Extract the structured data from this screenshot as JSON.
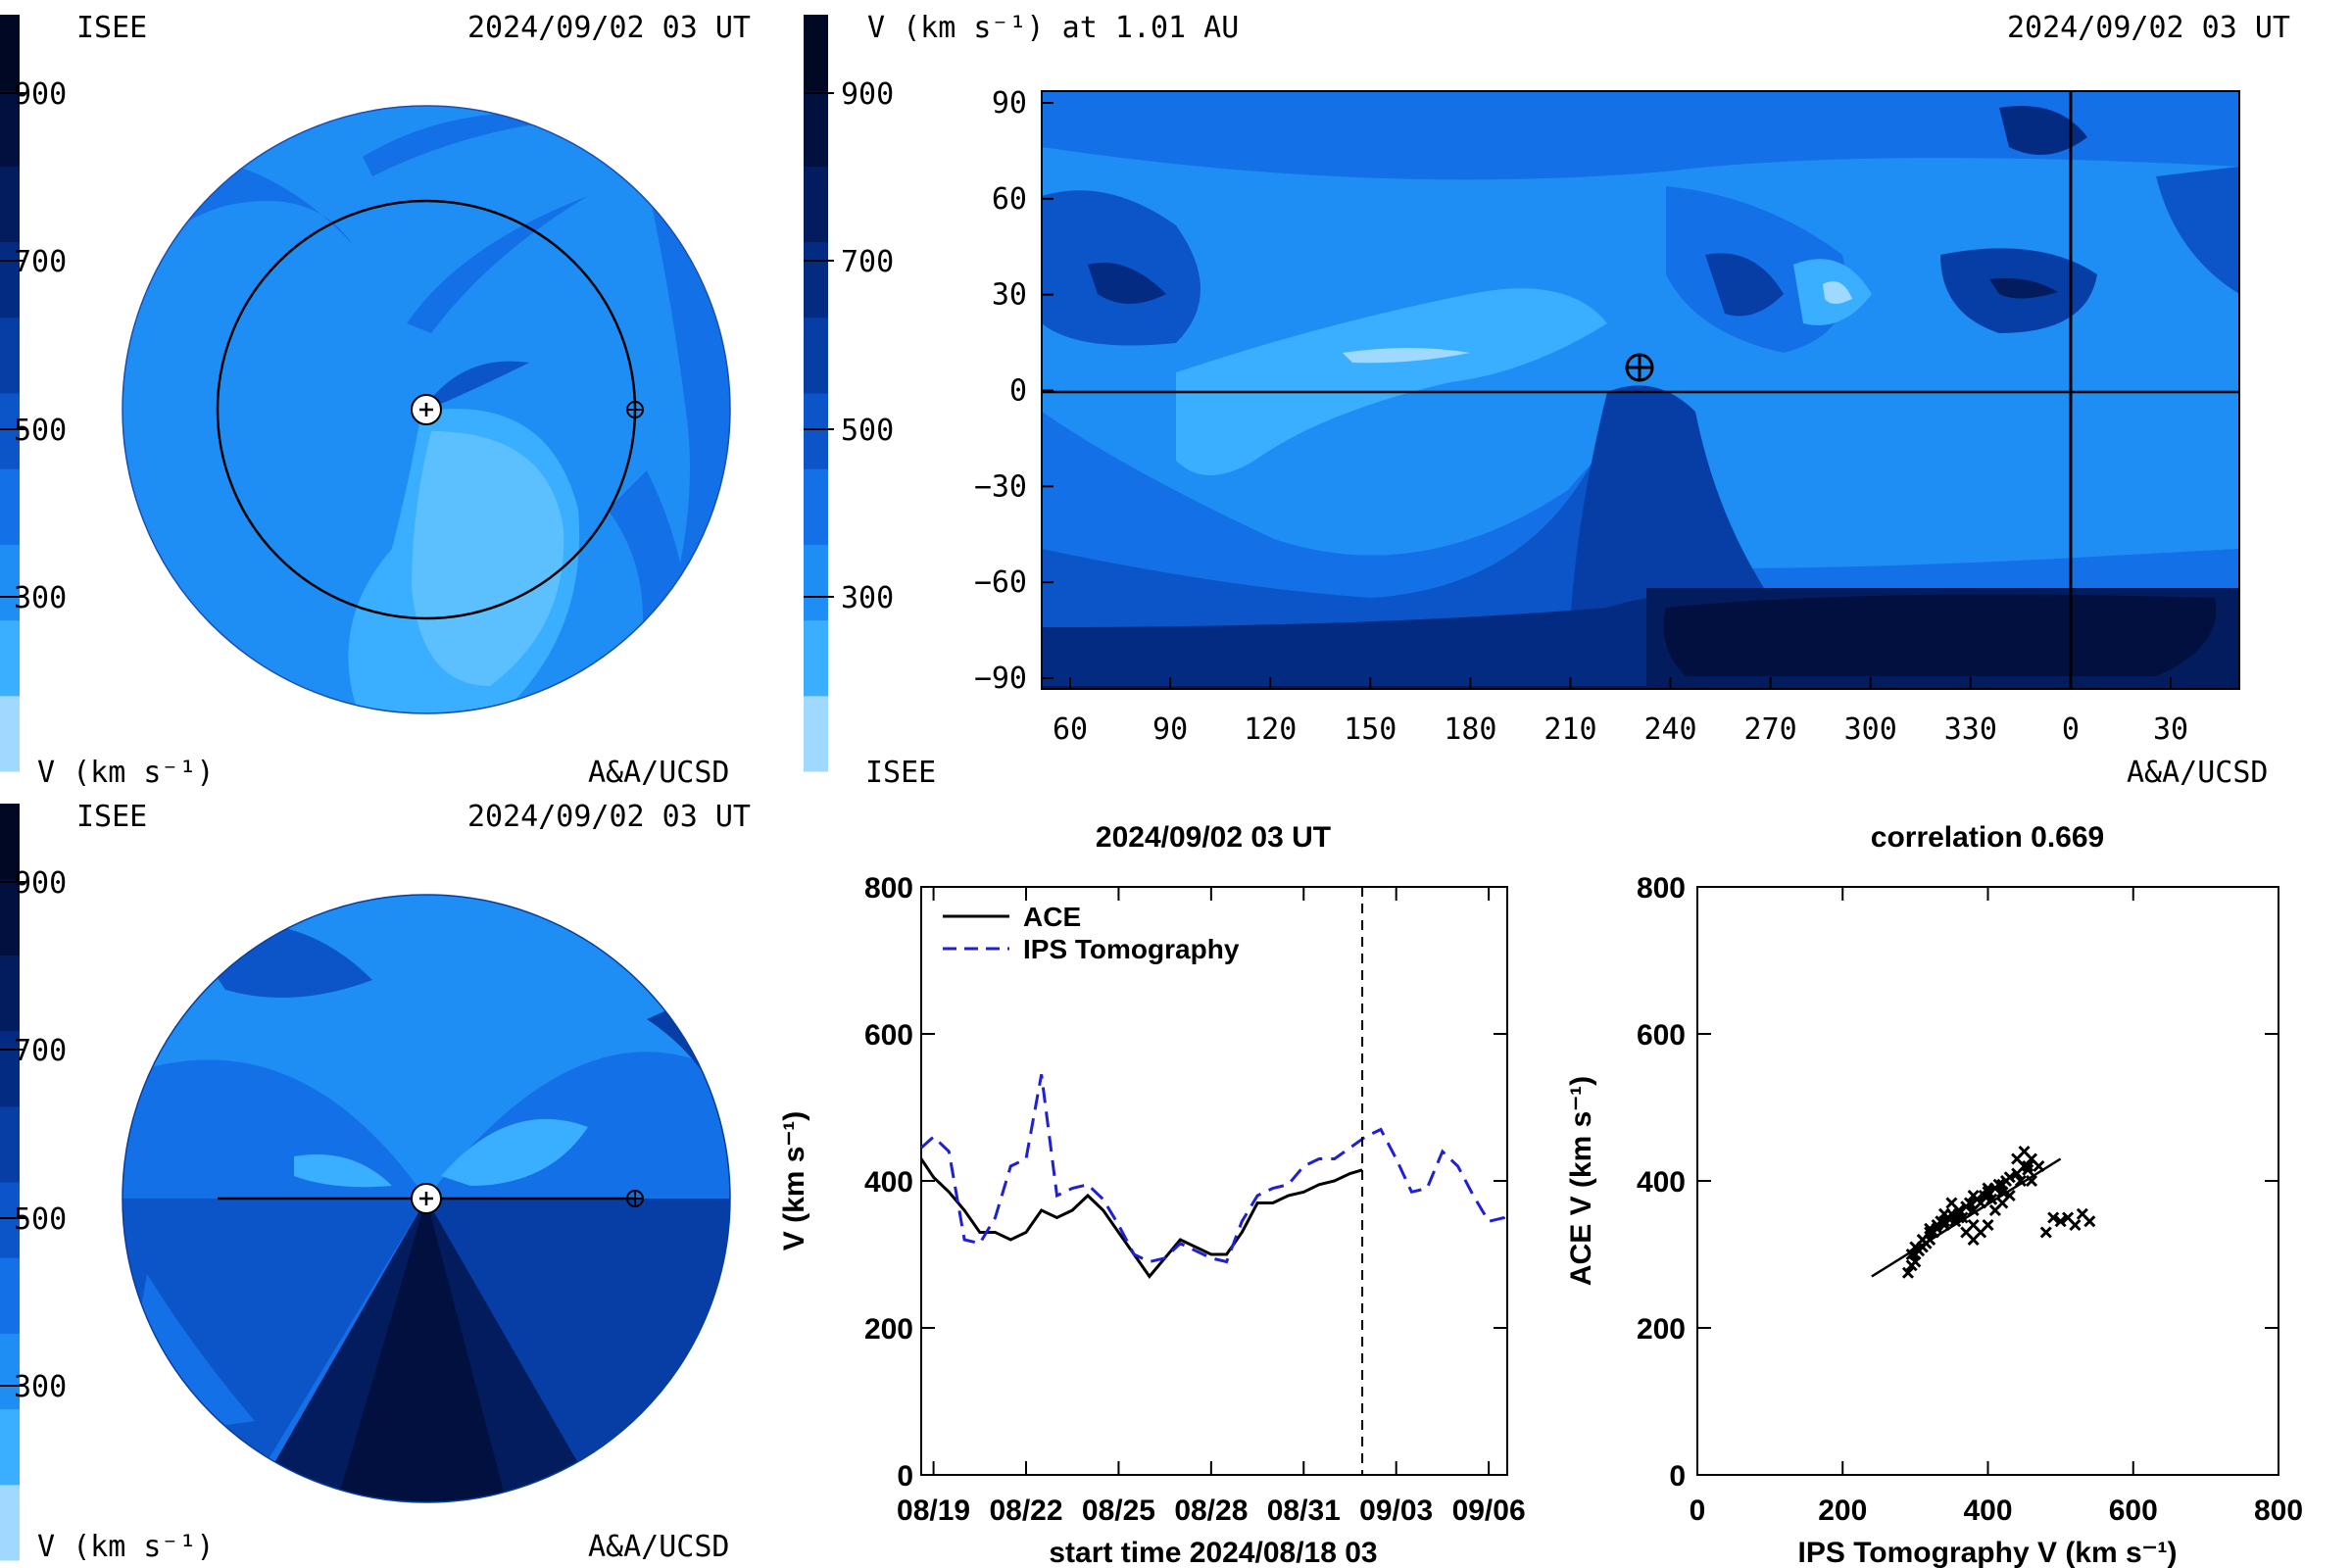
{
  "colorbar": {
    "ticks": [
      "900",
      "700",
      "500",
      "300"
    ],
    "levels": [
      "#9fd9ff",
      "#3aaeff",
      "#1e8ef4",
      "#1470e6",
      "#0b55c8",
      "#073ea6",
      "#042b82",
      "#021c5e",
      "#01103f",
      "#000824"
    ]
  },
  "panel_top_left": {
    "institution": "ISEE",
    "datetime": "2024/09/02 03 UT",
    "units": "V (km s⁻¹)",
    "credit": "A&A/UCSD"
  },
  "panel_bottom_left": {
    "institution": "ISEE",
    "datetime": "2024/09/02 03 UT",
    "units": "V (km s⁻¹)",
    "credit": "A&A/UCSD"
  },
  "panel_synoptic": {
    "title": "V (km s⁻¹) at 1.01 AU",
    "datetime": "2024/09/02 03 UT",
    "institution": "ISEE",
    "credit": "A&A/UCSD",
    "y_ticks": [
      "90",
      "60",
      "30",
      "0",
      "−30",
      "−60",
      "−90"
    ],
    "x_ticks": [
      "60",
      "90",
      "120",
      "150",
      "180",
      "210",
      "240",
      "270",
      "300",
      "330",
      "0",
      "30"
    ]
  },
  "chart_data": [
    {
      "type": "line",
      "title": "2024/09/02 03 UT",
      "xlabel": "start time 2024/08/18 03",
      "ylabel": "V (km s⁻¹)",
      "ylim": [
        0,
        800
      ],
      "xlim_days": [
        0.6,
        19.6
      ],
      "x_tick_labels": [
        "08/19",
        "08/22",
        "08/25",
        "08/28",
        "08/31",
        "09/03",
        "09/06"
      ],
      "y_ticks": [
        0,
        200,
        400,
        600,
        800
      ],
      "now_marker_day": 14.9,
      "legend": "top-left",
      "series": [
        {
          "name": "ACE",
          "color": "#000000",
          "style": "solid",
          "x": [
            0.6,
            1.0,
            1.5,
            2.0,
            2.5,
            3.0,
            3.5,
            4.0,
            4.5,
            5.0,
            5.5,
            6.0,
            6.5,
            7.0,
            7.5,
            8.0,
            8.5,
            9.0,
            9.5,
            10.0,
            10.5,
            11.0,
            11.5,
            12.0,
            12.5,
            13.0,
            13.5,
            14.0,
            14.5,
            14.9
          ],
          "y": [
            430,
            405,
            385,
            360,
            330,
            330,
            320,
            330,
            360,
            350,
            360,
            380,
            360,
            330,
            300,
            270,
            295,
            320,
            310,
            300,
            300,
            330,
            370,
            370,
            380,
            385,
            395,
            400,
            410,
            415
          ]
        },
        {
          "name": "IPS Tomography",
          "color": "#1f1fd6",
          "style": "dashed",
          "x": [
            0.6,
            1.0,
            1.5,
            2.0,
            2.5,
            3.0,
            3.5,
            4.0,
            4.5,
            5.0,
            5.5,
            6.0,
            6.5,
            7.0,
            7.5,
            8.0,
            8.5,
            9.0,
            9.5,
            10.0,
            10.5,
            11.0,
            11.5,
            12.0,
            12.5,
            13.0,
            13.5,
            14.0,
            14.5,
            15.0,
            15.5,
            16.0,
            16.5,
            17.0,
            17.5,
            18.0,
            18.5,
            19.0,
            19.5,
            19.6
          ],
          "y": [
            445,
            460,
            440,
            320,
            315,
            350,
            420,
            430,
            545,
            380,
            390,
            395,
            375,
            340,
            300,
            290,
            295,
            315,
            305,
            295,
            290,
            345,
            380,
            390,
            395,
            420,
            430,
            430,
            445,
            460,
            470,
            430,
            385,
            390,
            440,
            420,
            380,
            345,
            350,
            355
          ]
        }
      ]
    },
    {
      "type": "scatter",
      "title": "correlation 0.669",
      "xlabel": "IPS Tomography V (km s⁻¹)",
      "ylabel": "ACE V (km s⁻¹)",
      "xlim": [
        0,
        800
      ],
      "ylim": [
        0,
        800
      ],
      "x_ticks": [
        0,
        200,
        400,
        600,
        800
      ],
      "y_ticks": [
        0,
        200,
        400,
        600,
        800
      ],
      "points_x": [
        290,
        295,
        300,
        305,
        310,
        315,
        320,
        325,
        330,
        335,
        340,
        345,
        350,
        355,
        360,
        365,
        370,
        375,
        380,
        385,
        390,
        395,
        400,
        405,
        410,
        415,
        420,
        425,
        430,
        440,
        450,
        460,
        470,
        480,
        490,
        500,
        510,
        520,
        530,
        540,
        295,
        300,
        310,
        320,
        330,
        340,
        350,
        360,
        370,
        380,
        390,
        400,
        410,
        420,
        430,
        445,
        455,
        380,
        400,
        420,
        300,
        310,
        320,
        340,
        360,
        380,
        440,
        450,
        455,
        460
      ],
      "points_y": [
        275,
        285,
        300,
        305,
        310,
        315,
        320,
        330,
        335,
        345,
        340,
        350,
        355,
        345,
        360,
        350,
        365,
        370,
        360,
        375,
        370,
        380,
        385,
        375,
        390,
        395,
        385,
        400,
        405,
        410,
        420,
        430,
        420,
        330,
        350,
        345,
        350,
        340,
        355,
        345,
        300,
        310,
        320,
        330,
        340,
        355,
        370,
        350,
        330,
        320,
        330,
        340,
        360,
        370,
        380,
        400,
        415,
        380,
        390,
        395,
        290,
        320,
        335,
        345,
        355,
        340,
        430,
        440,
        420,
        400
      ],
      "fit_line": {
        "x": [
          240,
          500
        ],
        "y": [
          270,
          430
        ]
      }
    }
  ]
}
